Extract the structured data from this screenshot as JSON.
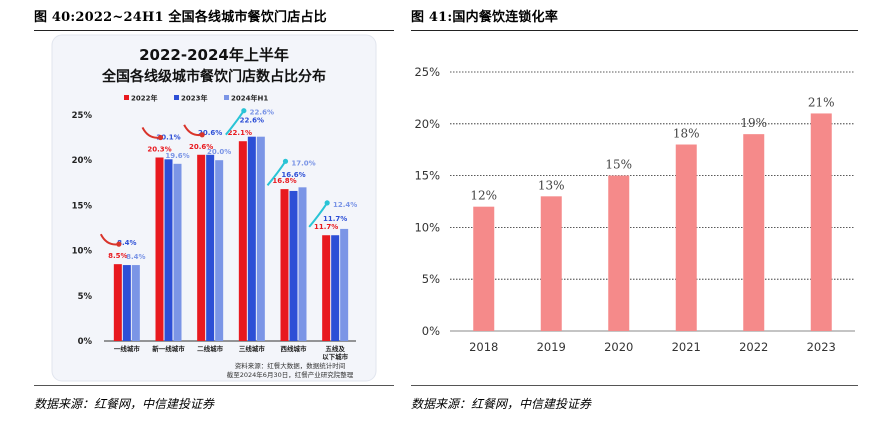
{
  "left_figure": {
    "caption": "图 40:2022~24H1 全国各线城市餐饮门店占比",
    "source": "数据来源：红餐网，中信建投证券"
  },
  "right_figure": {
    "caption": "图 41:国内餐饮连锁化率",
    "source": "数据来源：红餐网，中信建投证券"
  },
  "colors": {
    "s2022": "#e8191f",
    "s2023": "#2d4fd6",
    "s2024": "#7b95e6",
    "bar_right": "#f58a8a",
    "arrow_red": "#d9342b",
    "arrow_cyan": "#29c4d6"
  },
  "chart_data": [
    {
      "type": "bar",
      "title_line1": "2022-2024年上半年",
      "title_line2": "全国各线级城市餐饮门店数占比分布",
      "categories": [
        "一线城市",
        "新一线城市",
        "二线城市",
        "三线城市",
        "西线城市",
        "五线及\n以下城市"
      ],
      "categories_line1": [
        "一线城市",
        "新一线城市",
        "二线城市",
        "三线城市",
        "西线城市",
        "五线及"
      ],
      "categories_line2": [
        "",
        "",
        "",
        "",
        "",
        "以下城市"
      ],
      "series": [
        {
          "name": "2022年",
          "values": [
            8.5,
            20.3,
            20.6,
            22.1,
            16.8,
            11.7
          ],
          "labels": [
            "8.5%",
            "20.3%",
            "20.6%",
            "22.1%",
            "16.8%",
            "11.7%"
          ]
        },
        {
          "name": "2023年",
          "values": [
            8.4,
            20.1,
            20.6,
            22.6,
            16.6,
            11.7
          ],
          "labels": [
            "8.4%",
            "20.1%",
            "20.6%",
            "22.6%",
            "16.6%",
            "11.7%"
          ]
        },
        {
          "name": "2024年H1",
          "values": [
            8.4,
            19.6,
            20.0,
            22.6,
            17.0,
            12.4
          ],
          "labels": [
            "8.4%",
            "19.6%",
            "20.0%",
            "22.6%",
            "17.0%",
            "12.4%"
          ]
        }
      ],
      "yticks": [
        "0%",
        "5%",
        "10%",
        "15%",
        "20%",
        "25%"
      ],
      "ylim": [
        0,
        25
      ],
      "legend_position": "top",
      "grid": false,
      "note_line1": "资料来源：红餐大数据，数据统计时间",
      "note_line2": "截至2024年6月30日，红餐产业研究院整理"
    },
    {
      "type": "bar",
      "categories": [
        "2018",
        "2019",
        "2020",
        "2021",
        "2022",
        "2023"
      ],
      "values": [
        12,
        13,
        15,
        18,
        19,
        21
      ],
      "labels": [
        "12%",
        "13%",
        "15%",
        "18%",
        "19%",
        "21%"
      ],
      "yticks": [
        "0%",
        "5%",
        "10%",
        "15%",
        "20%",
        "25%"
      ],
      "ylim": [
        0,
        25
      ],
      "grid": true,
      "legend_position": "none"
    }
  ]
}
